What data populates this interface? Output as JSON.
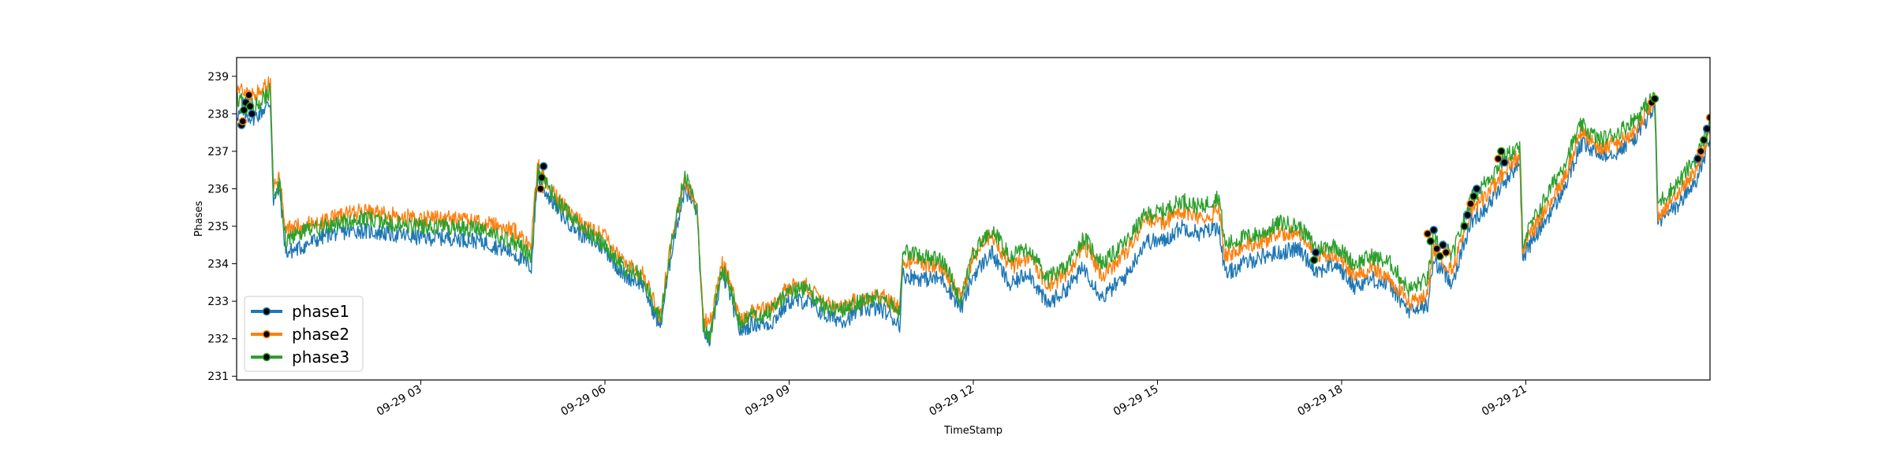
{
  "chart_data": {
    "type": "line",
    "title": "",
    "xlabel": "TimeStamp",
    "ylabel": "Phases",
    "ylim": [
      230.9,
      239.5
    ],
    "y_ticks": [
      231,
      232,
      233,
      234,
      235,
      236,
      237,
      238,
      239
    ],
    "xlim_hours": [
      0.0,
      24.0
    ],
    "x_ticks": [
      {
        "label": "09-29 03",
        "hour": 3
      },
      {
        "label": "09-29 06",
        "hour": 6
      },
      {
        "label": "09-29 09",
        "hour": 9
      },
      {
        "label": "09-29 12",
        "hour": 12
      },
      {
        "label": "09-29 15",
        "hour": 15
      },
      {
        "label": "09-29 18",
        "hour": 18
      },
      {
        "label": "09-29 21",
        "hour": 21
      }
    ],
    "grid": false,
    "legend": "lower-left",
    "series": [
      {
        "name": "phase1",
        "color": "#1f77b4",
        "x": [
          0.0,
          0.3,
          0.55,
          0.6,
          0.7,
          0.8,
          1.0,
          1.5,
          2.0,
          2.5,
          3.0,
          3.5,
          4.0,
          4.5,
          4.8,
          4.9,
          5.0,
          5.3,
          5.6,
          6.0,
          6.3,
          6.6,
          6.9,
          7.1,
          7.3,
          7.5,
          7.6,
          7.7,
          7.9,
          8.0,
          8.2,
          8.4,
          8.7,
          9.0,
          9.3,
          9.6,
          9.9,
          10.2,
          10.5,
          10.8,
          10.85,
          11.2,
          11.5,
          11.8,
          12.0,
          12.3,
          12.6,
          12.9,
          13.2,
          13.5,
          13.8,
          14.1,
          14.5,
          14.8,
          15.1,
          15.4,
          15.7,
          16.0,
          16.1,
          16.4,
          16.7,
          17.0,
          17.3,
          17.6,
          17.9,
          18.2,
          18.5,
          18.8,
          19.1,
          19.4,
          19.5,
          19.8,
          20.1,
          20.4,
          20.7,
          20.9,
          20.95,
          21.3,
          21.6,
          21.9,
          22.2,
          22.5,
          22.8,
          23.1,
          23.15,
          23.5,
          23.8,
          24.0
        ],
        "y": [
          238.0,
          237.9,
          238.3,
          235.7,
          236.0,
          234.3,
          234.4,
          234.8,
          234.9,
          234.8,
          234.7,
          234.7,
          234.6,
          234.3,
          233.9,
          236.3,
          236.0,
          235.3,
          234.8,
          234.4,
          233.7,
          233.5,
          232.3,
          234.5,
          236.0,
          235.4,
          232.3,
          231.9,
          233.7,
          233.4,
          232.2,
          232.4,
          232.4,
          233.0,
          233.0,
          232.6,
          232.5,
          232.8,
          232.8,
          232.4,
          233.7,
          233.6,
          233.6,
          232.8,
          233.7,
          234.3,
          233.4,
          233.8,
          232.9,
          233.3,
          233.9,
          233.1,
          233.7,
          234.6,
          234.6,
          235.0,
          234.8,
          235.0,
          233.7,
          234.0,
          234.2,
          234.3,
          234.4,
          233.8,
          234.0,
          233.4,
          233.6,
          233.4,
          232.7,
          232.9,
          234.1,
          233.5,
          235.1,
          235.6,
          236.3,
          236.7,
          234.2,
          235.1,
          235.9,
          237.2,
          236.9,
          237.0,
          237.4,
          238.2,
          235.1,
          235.6,
          236.3,
          237.3
        ]
      },
      {
        "name": "phase2",
        "color": "#ff7f0e",
        "x": [
          0.0,
          0.3,
          0.55,
          0.6,
          0.7,
          0.8,
          1.0,
          1.5,
          2.0,
          2.5,
          3.0,
          3.5,
          4.0,
          4.5,
          4.8,
          4.9,
          5.0,
          5.3,
          5.6,
          6.0,
          6.3,
          6.6,
          6.9,
          7.1,
          7.3,
          7.5,
          7.6,
          7.7,
          7.9,
          8.0,
          8.2,
          8.4,
          8.7,
          9.0,
          9.3,
          9.6,
          9.9,
          10.2,
          10.5,
          10.8,
          10.85,
          11.2,
          11.5,
          11.8,
          12.0,
          12.3,
          12.6,
          12.9,
          13.2,
          13.5,
          13.8,
          14.1,
          14.5,
          14.8,
          15.1,
          15.4,
          15.7,
          16.0,
          16.1,
          16.4,
          16.7,
          17.0,
          17.3,
          17.6,
          17.9,
          18.2,
          18.5,
          18.8,
          19.1,
          19.4,
          19.5,
          19.8,
          20.1,
          20.4,
          20.7,
          20.9,
          20.95,
          21.3,
          21.6,
          21.9,
          22.2,
          22.5,
          22.8,
          23.1,
          23.15,
          23.5,
          23.8,
          24.0
        ],
        "y": [
          238.6,
          238.5,
          238.8,
          236.0,
          236.3,
          234.9,
          235.0,
          235.2,
          235.4,
          235.3,
          235.2,
          235.2,
          235.1,
          234.9,
          234.5,
          236.7,
          236.3,
          235.6,
          235.1,
          234.7,
          234.0,
          233.8,
          232.6,
          234.8,
          236.2,
          235.6,
          232.6,
          232.3,
          234.0,
          233.7,
          232.5,
          232.7,
          232.8,
          233.4,
          233.4,
          232.9,
          232.9,
          233.1,
          233.2,
          232.8,
          234.1,
          234.0,
          233.9,
          233.1,
          234.2,
          234.8,
          233.9,
          234.2,
          233.4,
          233.7,
          234.5,
          233.7,
          234.3,
          235.2,
          235.1,
          235.4,
          235.2,
          235.4,
          234.2,
          234.5,
          234.6,
          234.8,
          234.9,
          234.2,
          234.3,
          233.7,
          233.9,
          233.6,
          232.9,
          233.2,
          234.4,
          233.8,
          235.4,
          235.9,
          236.6,
          236.9,
          234.4,
          235.4,
          236.2,
          237.5,
          237.1,
          237.2,
          237.6,
          238.4,
          235.3,
          235.9,
          236.6,
          237.6
        ]
      },
      {
        "name": "phase3",
        "color": "#2ca02c",
        "x": [
          0.0,
          0.3,
          0.55,
          0.6,
          0.7,
          0.8,
          1.0,
          1.5,
          2.0,
          2.5,
          3.0,
          3.5,
          4.0,
          4.5,
          4.8,
          4.9,
          5.0,
          5.3,
          5.6,
          6.0,
          6.3,
          6.6,
          6.9,
          7.1,
          7.3,
          7.5,
          7.6,
          7.7,
          7.9,
          8.0,
          8.2,
          8.4,
          8.7,
          9.0,
          9.3,
          9.6,
          9.9,
          10.2,
          10.5,
          10.8,
          10.85,
          11.2,
          11.5,
          11.8,
          12.0,
          12.3,
          12.6,
          12.9,
          13.2,
          13.5,
          13.8,
          14.1,
          14.5,
          14.8,
          15.1,
          15.4,
          15.7,
          16.0,
          16.1,
          16.4,
          16.7,
          17.0,
          17.3,
          17.6,
          17.9,
          18.2,
          18.5,
          18.8,
          19.1,
          19.4,
          19.5,
          19.8,
          20.1,
          20.4,
          20.7,
          20.9,
          20.95,
          21.3,
          21.6,
          21.9,
          22.2,
          22.5,
          22.8,
          23.1,
          23.15,
          23.5,
          23.8,
          24.0
        ],
        "y": [
          238.4,
          238.2,
          238.6,
          235.8,
          236.2,
          234.6,
          234.8,
          235.0,
          235.2,
          235.1,
          235.0,
          235.0,
          234.9,
          234.6,
          234.2,
          236.5,
          236.2,
          235.5,
          235.0,
          234.5,
          233.9,
          233.7,
          232.5,
          234.7,
          236.4,
          235.5,
          232.4,
          232.0,
          233.8,
          233.6,
          232.4,
          232.6,
          232.7,
          233.3,
          233.3,
          232.8,
          232.8,
          233.0,
          233.1,
          232.7,
          234.3,
          234.2,
          234.1,
          233.0,
          234.3,
          234.9,
          234.2,
          234.4,
          233.6,
          233.9,
          234.7,
          234.0,
          234.6,
          235.3,
          235.4,
          235.7,
          235.5,
          235.8,
          234.5,
          234.7,
          234.8,
          235.1,
          235.0,
          234.4,
          234.5,
          234.0,
          234.2,
          234.0,
          233.3,
          233.6,
          234.7,
          234.2,
          235.7,
          236.3,
          236.9,
          237.1,
          234.6,
          235.7,
          236.6,
          237.7,
          237.3,
          237.5,
          237.9,
          238.5,
          235.6,
          236.2,
          236.9,
          237.8
        ]
      }
    ],
    "markers": {
      "color": "#000000",
      "points": [
        [
          0.08,
          237.7
        ],
        [
          0.1,
          237.8
        ],
        [
          0.12,
          238.1
        ],
        [
          0.15,
          238.3
        ],
        [
          0.2,
          238.5
        ],
        [
          0.22,
          238.2
        ],
        [
          0.25,
          238.0
        ],
        [
          4.95,
          236.0
        ],
        [
          4.97,
          236.3
        ],
        [
          5.0,
          236.6
        ],
        [
          19.4,
          234.8
        ],
        [
          19.45,
          234.6
        ],
        [
          19.5,
          234.9
        ],
        [
          19.55,
          234.4
        ],
        [
          19.6,
          234.2
        ],
        [
          19.65,
          234.5
        ],
        [
          19.7,
          234.3
        ],
        [
          20.0,
          235.0
        ],
        [
          20.05,
          235.3
        ],
        [
          20.1,
          235.6
        ],
        [
          20.15,
          235.8
        ],
        [
          20.2,
          236.0
        ],
        [
          20.55,
          236.8
        ],
        [
          20.6,
          237.0
        ],
        [
          20.65,
          236.7
        ],
        [
          23.05,
          238.3
        ],
        [
          23.1,
          238.4
        ],
        [
          23.8,
          236.8
        ],
        [
          23.85,
          237.0
        ],
        [
          23.9,
          237.3
        ],
        [
          23.95,
          237.6
        ],
        [
          24.0,
          237.9
        ],
        [
          17.55,
          234.1
        ],
        [
          17.58,
          234.3
        ]
      ]
    }
  }
}
